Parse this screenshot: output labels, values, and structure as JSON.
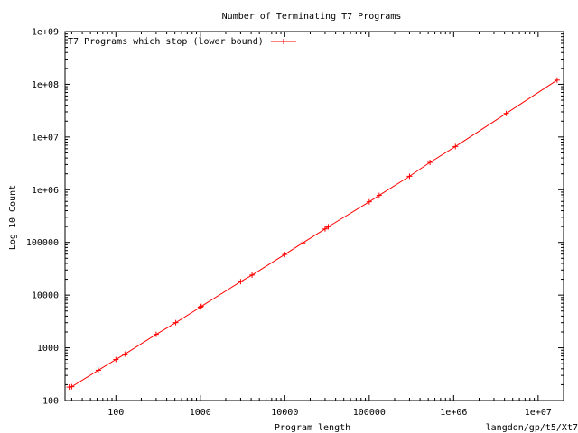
{
  "chart_data": {
    "type": "line",
    "title": "Number of Terminating T7 Programs",
    "xlabel": "Program length",
    "ylabel": "Log 10 Count",
    "footnote": "langdon/gp/t5/Xt7",
    "x_scale": "log",
    "y_scale": "log",
    "xlim": [
      25,
      20000000
    ],
    "ylim": [
      100,
      1000000000
    ],
    "x_ticks": [
      {
        "value": 100,
        "label": "100"
      },
      {
        "value": 1000,
        "label": "1000"
      },
      {
        "value": 10000,
        "label": "10000"
      },
      {
        "value": 100000,
        "label": "100000"
      },
      {
        "value": 1000000,
        "label": "1e+06"
      },
      {
        "value": 10000000,
        "label": "1e+07"
      }
    ],
    "y_ticks": [
      {
        "value": 100,
        "label": "100"
      },
      {
        "value": 1000,
        "label": "1000"
      },
      {
        "value": 10000,
        "label": "10000"
      },
      {
        "value": 100000,
        "label": "100000"
      },
      {
        "value": 1000000,
        "label": "1e+06"
      },
      {
        "value": 10000000,
        "label": "1e+07"
      },
      {
        "value": 100000000,
        "label": "1e+08"
      },
      {
        "value": 1000000000,
        "label": "1e+09"
      }
    ],
    "grid": false,
    "legend_position": "top-left",
    "series": [
      {
        "name": "T7 Programs which stop (lower bound)",
        "color": "#ff0000",
        "marker": "plus",
        "x": [
          28,
          30,
          62,
          100,
          128,
          300,
          512,
          1000,
          1024,
          3000,
          4096,
          10000,
          16384,
          30000,
          32768,
          100000,
          131072,
          300000,
          524288,
          1048576,
          4194304,
          16777216
        ],
        "y": [
          180,
          183,
          375,
          600,
          760,
          1800,
          3000,
          5900,
          6100,
          18000,
          24000,
          59000,
          98000,
          180000,
          198000,
          590000,
          780000,
          1800000,
          3300000,
          6600000,
          28000000,
          120000000
        ]
      }
    ]
  }
}
